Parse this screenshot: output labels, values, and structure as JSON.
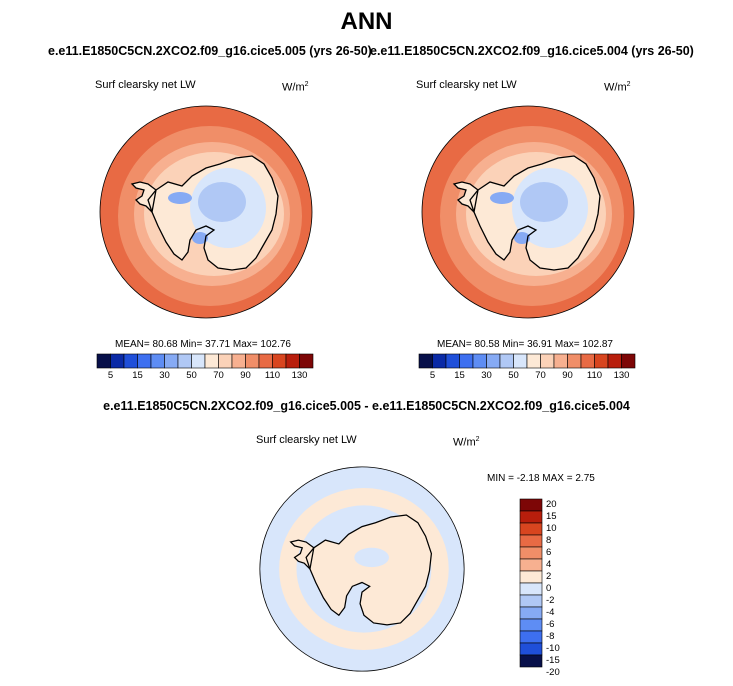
{
  "title": "ANN",
  "panels": [
    {
      "case": "e.e11.E1850C5CN.2XCO2.f09_g16.cice5.005 (yrs 26-50)",
      "variable": "Surf clearsky net LW",
      "units": "W/m",
      "units_exp": "2",
      "stats": {
        "mean_label": "MEAN=",
        "mean": "80.68",
        "min_label": "Min=",
        "min": "37.71",
        "max_label": "Max=",
        "max": "102.76"
      }
    },
    {
      "case": "e.e11.E1850C5CN.2XCO2.f09_g16.cice5.004 (yrs 26-50)",
      "variable": "Surf clearsky net LW",
      "units": "W/m",
      "units_exp": "2",
      "stats": {
        "mean_label": "MEAN=",
        "mean": "80.58",
        "min_label": "Min=",
        "min": "36.91",
        "max_label": "Max=",
        "max": "102.87"
      }
    }
  ],
  "colorbar": {
    "colors": [
      "#08104a",
      "#0a2aa6",
      "#1f4fd9",
      "#3d6ff0",
      "#5e8df4",
      "#86aaf4",
      "#b0c8f5",
      "#d8e6fb",
      "#fde9d6",
      "#fbd2b8",
      "#f7b090",
      "#f08e68",
      "#e86a44",
      "#d8451f",
      "#b81e0c",
      "#7d0606"
    ],
    "labels": [
      "5",
      "15",
      "30",
      "50",
      "70",
      "90",
      "110",
      "130"
    ]
  },
  "difference": {
    "title": "e.e11.E1850C5CN.2XCO2.f09_g16.cice5.005 - e.e11.E1850C5CN.2XCO2.f09_g16.cice5.004",
    "variable": "Surf clearsky net LW",
    "units": "W/m",
    "units_exp": "2",
    "stats": "MIN =  -2.18 MAX =   2.75",
    "colorbar_colors": [
      "#7d0606",
      "#b81e0c",
      "#d8451f",
      "#e86a44",
      "#f08e68",
      "#f7b090",
      "#fde9d6",
      "#d8e6fb",
      "#b0c8f5",
      "#86aaf4",
      "#5e8df4",
      "#3d6ff0",
      "#1f4fd9",
      "#08104a"
    ],
    "colorbar_labels": [
      "20",
      "15",
      "10",
      "8",
      "6",
      "4",
      "2",
      "0",
      "-2",
      "-4",
      "-6",
      "-8",
      "-10",
      "-15",
      "-20"
    ]
  },
  "map_colors": {
    "ocean_outer": "#e86a44",
    "ocean_mid": "#f08e68",
    "ocean_inner": "#f7b090",
    "shelf": "#fbd2b8",
    "land_warm": "#fde9d6",
    "land_pale": "#d8e6fb",
    "land_blue": "#b0c8f5",
    "land_deep": "#86aaf4",
    "diff_bg": "#d8e6fb",
    "diff_land": "#fde9d6",
    "coast": "#000000"
  }
}
